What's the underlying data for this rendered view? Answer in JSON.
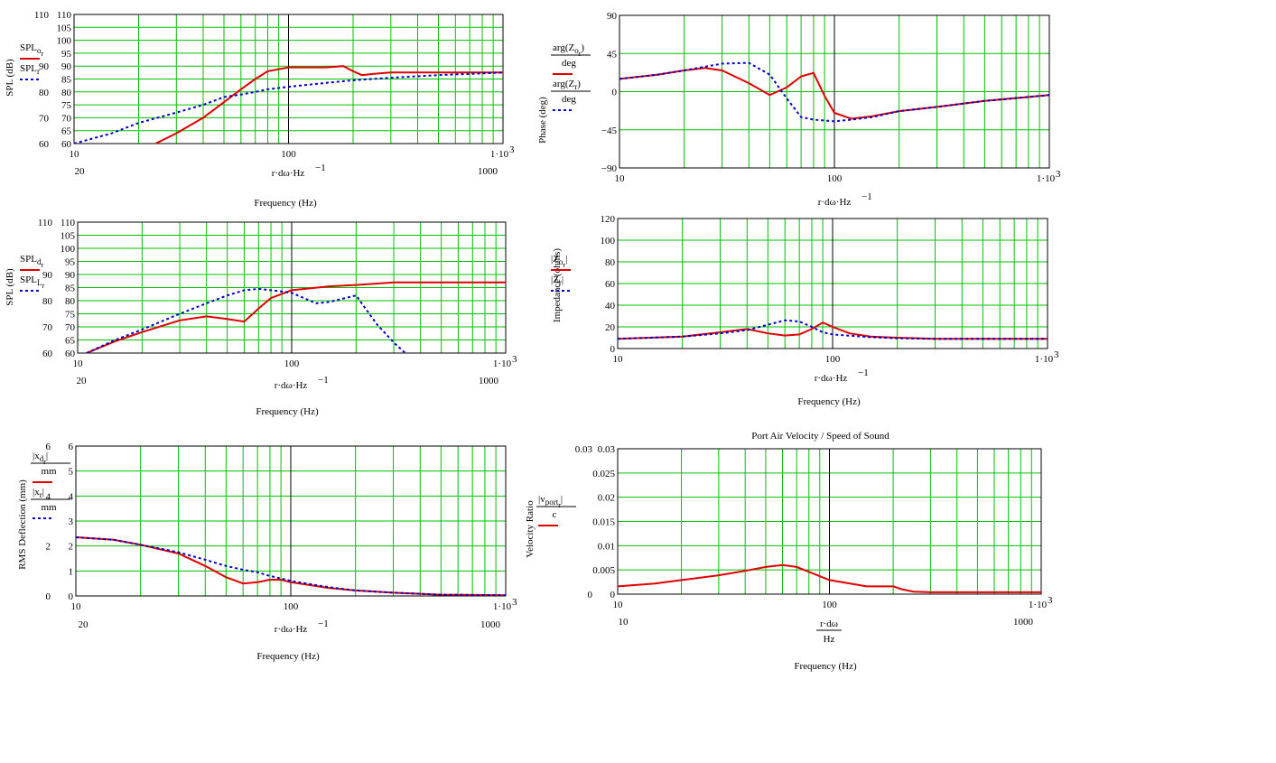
{
  "chart_data": [
    {
      "id": "spl-on-axis",
      "type": "line",
      "xscale": "log",
      "xlim": [
        10,
        1000
      ],
      "ylim": [
        60,
        110
      ],
      "ylabel": "SPL (dB)",
      "xlabel": "r·dω·Hz",
      "xlabel_exp": "−1",
      "xtitle": "Frequency (Hz)",
      "xticks": [
        "10",
        "100",
        "1·10"
      ],
      "xticks_lower": [
        "20",
        "1000"
      ],
      "yticks": [
        "110",
        "105",
        "100",
        "95",
        "90",
        "85",
        "80",
        "75",
        "70",
        "65",
        "60"
      ],
      "yticks_inner": [
        "110",
        "90",
        "80",
        "70",
        "60"
      ],
      "legend": [
        {
          "main": "SPL",
          "sub": "o",
          "sub2": "r",
          "style": "solid"
        },
        {
          "main": "SPL",
          "sub": "r",
          "sub2": "",
          "style": "dashed"
        }
      ],
      "series": [
        {
          "x": [
            24,
            30,
            40,
            50,
            60,
            70,
            80,
            100,
            150,
            180,
            200,
            220,
            250,
            300,
            500,
            700,
            1000,
            1100
          ],
          "y": [
            60,
            64,
            70,
            76,
            81,
            85,
            88,
            89.5,
            89.5,
            90,
            88,
            86.5,
            87,
            87.5,
            87.5,
            87.5,
            87.5,
            87.5
          ]
        },
        {
          "x": [
            10,
            15,
            20,
            30,
            40,
            50,
            60,
            70,
            80,
            100,
            150,
            200,
            300,
            500,
            1000,
            1100
          ],
          "y": [
            60,
            64,
            68,
            72,
            75,
            78,
            79,
            80,
            81,
            82,
            83.5,
            84.5,
            85.5,
            86.5,
            87.5,
            87.5
          ]
        }
      ]
    },
    {
      "id": "phase",
      "type": "line",
      "xscale": "log",
      "xlim": [
        10,
        1000
      ],
      "ylim": [
        -90,
        90
      ],
      "ylabel": "Phase (deg)",
      "xlabel": "r·dω·Hz",
      "xlabel_exp": "−1",
      "xtitle": "",
      "xticks": [
        "10",
        "100",
        "1·10"
      ],
      "xticks_lower": [],
      "yticks": [
        "90",
        "45",
        "0",
        "−45",
        "−90"
      ],
      "yticks_inner": [],
      "legend": [
        {
          "main": "arg(Z",
          "sub": "o",
          "sub2": "r",
          "tail": ")",
          "den": "deg",
          "style": "solid"
        },
        {
          "main": "arg(Z",
          "sub": "r",
          "sub2": "",
          "tail": ")",
          "den": "deg",
          "style": "dashed"
        }
      ],
      "series": [
        {
          "x": [
            10,
            15,
            20,
            25,
            30,
            40,
            50,
            60,
            70,
            80,
            90,
            100,
            120,
            150,
            200,
            300,
            500,
            1000
          ],
          "y": [
            15,
            20,
            25,
            28,
            25,
            10,
            -4,
            5,
            18,
            22,
            -5,
            -25,
            -32,
            -29,
            -23,
            -18,
            -11,
            -4
          ]
        },
        {
          "x": [
            10,
            15,
            20,
            30,
            40,
            50,
            60,
            70,
            80,
            100,
            120,
            150,
            200,
            300,
            500,
            1000
          ],
          "y": [
            15,
            20,
            25,
            33,
            34,
            20,
            -8,
            -30,
            -33,
            -35,
            -33,
            -30,
            -23,
            -18,
            -11,
            -4
          ]
        }
      ]
    },
    {
      "id": "spl-driver-port",
      "type": "line",
      "xscale": "log",
      "xlim": [
        10,
        1000
      ],
      "ylim": [
        60,
        110
      ],
      "ylabel": "SPL (dB)",
      "xlabel": "r·dω·Hz",
      "xlabel_exp": "−1",
      "xtitle": "Frequency (Hz)",
      "xticks": [
        "10",
        "100",
        "1·10"
      ],
      "xticks_lower": [
        "20",
        "1000"
      ],
      "yticks": [
        "110",
        "105",
        "100",
        "95",
        "90",
        "85",
        "80",
        "75",
        "70",
        "65",
        "60"
      ],
      "yticks_inner": [
        "110",
        "90",
        "80",
        "70",
        "60"
      ],
      "legend": [
        {
          "main": "SPL",
          "sub": "d",
          "sub2": "r",
          "style": "solid"
        },
        {
          "main": "SPL",
          "sub": "L",
          "sub2": "r",
          "style": "dashed"
        }
      ],
      "series": [
        {
          "x": [
            11,
            15,
            20,
            30,
            40,
            50,
            60,
            70,
            80,
            100,
            150,
            200,
            300,
            500,
            1000
          ],
          "y": [
            60,
            64.5,
            68,
            72.5,
            74,
            73,
            72,
            77,
            81,
            84,
            85.5,
            86,
            87,
            87,
            87
          ]
        },
        {
          "x": [
            11,
            15,
            20,
            30,
            40,
            50,
            60,
            70,
            80,
            100,
            130,
            150,
            200,
            250,
            300,
            350
          ],
          "y": [
            60,
            65,
            69,
            75,
            79,
            82,
            84,
            84.5,
            84,
            83,
            79,
            79.5,
            82,
            71,
            64,
            59
          ]
        }
      ]
    },
    {
      "id": "impedance",
      "type": "line",
      "xscale": "log",
      "xlim": [
        10,
        1000
      ],
      "ylim": [
        0,
        120
      ],
      "ylabel": "Impedance (ohms)",
      "xlabel": "r·dω·Hz",
      "xlabel_exp": "−1",
      "xtitle": "Frequency (Hz)",
      "xticks": [
        "10",
        "100",
        "1·10"
      ],
      "xticks_lower": [],
      "yticks": [
        "120",
        "100",
        "80",
        "60",
        "40",
        "20",
        "0"
      ],
      "yticks_inner": [],
      "legend": [
        {
          "main": "|Z",
          "sub": "o",
          "sub2": "r",
          "tail": "|",
          "style": "solid"
        },
        {
          "main": "|Z",
          "sub": "r",
          "sub2": "",
          "tail": "|",
          "style": "dashed"
        }
      ],
      "series": [
        {
          "x": [
            10,
            20,
            30,
            40,
            50,
            60,
            70,
            80,
            90,
            100,
            120,
            150,
            200,
            300,
            500,
            1000
          ],
          "y": [
            9,
            11,
            15,
            18,
            14,
            12,
            13,
            18,
            24,
            20,
            14,
            11,
            10,
            9,
            9,
            9
          ]
        },
        {
          "x": [
            10,
            20,
            30,
            40,
            50,
            60,
            70,
            80,
            90,
            100,
            150,
            200,
            300,
            500,
            1000
          ],
          "y": [
            9,
            11,
            14,
            17,
            22,
            26,
            25,
            20,
            15,
            13,
            10.5,
            9.5,
            9,
            9,
            9
          ]
        }
      ]
    },
    {
      "id": "deflection",
      "type": "line",
      "xscale": "log",
      "xlim": [
        10,
        1000
      ],
      "ylim": [
        0,
        6
      ],
      "ylabel": "RMS Deflection (mm)",
      "xlabel": "r·dω·Hz",
      "xlabel_exp": "−1",
      "xtitle": "Frequency (Hz)",
      "xticks": [
        "10",
        "100",
        "1·10"
      ],
      "xticks_lower": [
        "20",
        "1000"
      ],
      "yticks": [
        "6",
        "5",
        "4",
        "3",
        "2",
        "1",
        "0"
      ],
      "yticks_inner": [
        "6",
        "4",
        "2",
        "0"
      ],
      "legend": [
        {
          "main": "|x",
          "sub": "d",
          "sub2": "r",
          "tail": "|",
          "den": "mm",
          "style": "solid"
        },
        {
          "main": "|x",
          "sub": "r",
          "sub2": "",
          "tail": "|",
          "den": "mm",
          "style": "dashed"
        }
      ],
      "series": [
        {
          "x": [
            10,
            15,
            20,
            30,
            40,
            50,
            60,
            70,
            80,
            90,
            100,
            150,
            200,
            300,
            500,
            1000
          ],
          "y": [
            2.35,
            2.25,
            2.05,
            1.7,
            1.2,
            0.75,
            0.5,
            0.55,
            0.65,
            0.65,
            0.55,
            0.32,
            0.22,
            0.13,
            0.05,
            0.03
          ]
        },
        {
          "x": [
            10,
            15,
            20,
            30,
            40,
            50,
            60,
            70,
            80,
            90,
            100,
            150,
            200,
            300,
            500,
            1000
          ],
          "y": [
            2.35,
            2.25,
            2.05,
            1.75,
            1.45,
            1.2,
            1.05,
            0.95,
            0.8,
            0.7,
            0.6,
            0.35,
            0.22,
            0.13,
            0.05,
            0.03
          ]
        }
      ]
    },
    {
      "id": "port-velocity",
      "type": "line",
      "xscale": "log",
      "xlim": [
        10,
        1000
      ],
      "ylim": [
        0,
        0.03
      ],
      "title": "Port Air Velocity / Speed of Sound",
      "ylabel": "Velocity Ratio",
      "xlabel": "r·dω",
      "xlabel_den": "Hz",
      "xtitle": "Frequency (Hz)",
      "xticks": [
        "10",
        "100",
        "1·10"
      ],
      "xticks_lower": [
        "10",
        "1000"
      ],
      "yticks": [
        "0.03",
        "0.025",
        "0.02",
        "0.015",
        "0.01",
        "0.005",
        "0"
      ],
      "yticks_inner": [
        "0.03",
        "0"
      ],
      "legend": [
        {
          "main": "|v",
          "sub": "port",
          "sub2": "r",
          "tail": "|",
          "den": "c",
          "style": "solid"
        }
      ],
      "series": [
        {
          "x": [
            10,
            15,
            20,
            30,
            40,
            50,
            60,
            70,
            80,
            100,
            150,
            200,
            220,
            250,
            300,
            500,
            1000
          ],
          "y": [
            0.0016,
            0.0022,
            0.0029,
            0.0039,
            0.0048,
            0.0056,
            0.006,
            0.0056,
            0.0046,
            0.0029,
            0.0016,
            0.0016,
            0.001,
            0.0005,
            0.0004,
            0.0004,
            0.0004
          ]
        }
      ]
    }
  ]
}
